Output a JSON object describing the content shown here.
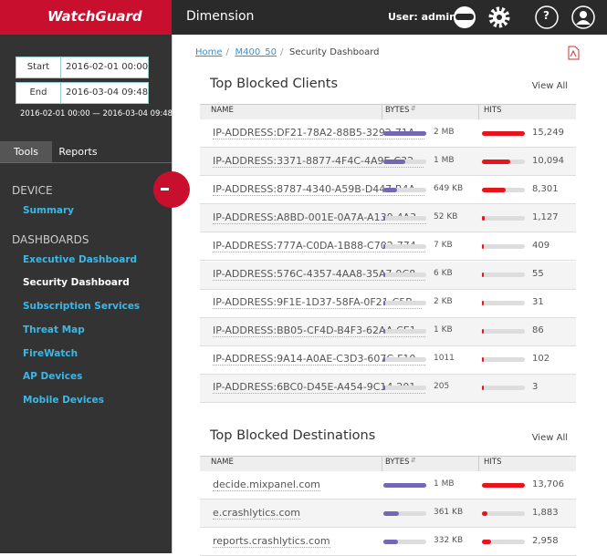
{
  "header": {
    "brand": "WatchGuard",
    "app": "Dimension",
    "user": "User: admin",
    "help": "?"
  },
  "sidebar": {
    "range": {
      "start_label": "Start",
      "start": "2016-02-01 00:00",
      "end_label": "End",
      "end": "2016-03-04 09:48",
      "summary": "2016-02-01 00:00 — 2016-03-04 09:48"
    },
    "tabs": [
      "Tools",
      "Reports"
    ],
    "sections": [
      {
        "title": "DEVICE",
        "items": [
          "Summary"
        ]
      },
      {
        "title": "DASHBOARDS",
        "items": [
          "Executive Dashboard",
          "Security Dashboard",
          "Subscription Services",
          "Threat Map",
          "FireWatch",
          "AP Devices",
          "Mobile Devices"
        ]
      }
    ]
  },
  "breadcrumb": [
    "Home",
    "M400_50",
    "Security Dashboard"
  ],
  "tables": [
    {
      "title": "Top Blocked Clients",
      "view_all": "View All",
      "columns": [
        "NAME",
        "BYTES",
        "HITS"
      ],
      "rows": [
        {
          "name": "IP-ADDRESS:DF21-78A2-88B5-3292-71A...",
          "bytes": {
            "value": 2000000,
            "label": "2 MB"
          },
          "hits": {
            "value": 15249,
            "label": "15,249"
          }
        },
        {
          "name": "IP-ADDRESS:3371-8877-4F4C-4A9E-C32...",
          "bytes": {
            "value": 1000000,
            "label": "1 MB"
          },
          "hits": {
            "value": 10094,
            "label": "10,094"
          }
        },
        {
          "name": "IP-ADDRESS:8787-4340-A59B-D447-B4A...",
          "bytes": {
            "value": 649000,
            "label": "649 KB"
          },
          "hits": {
            "value": 8301,
            "label": "8,301"
          }
        },
        {
          "name": "IP-ADDRESS:A8BD-001E-0A7A-A130-4A3...",
          "bytes": {
            "value": 52000,
            "label": "52 KB"
          },
          "hits": {
            "value": 1127,
            "label": "1,127"
          }
        },
        {
          "name": "IP-ADDRESS:777A-C0DA-1B88-C702-774...",
          "bytes": {
            "value": 7000,
            "label": "7 KB"
          },
          "hits": {
            "value": 409,
            "label": "409"
          }
        },
        {
          "name": "IP-ADDRESS:576C-4357-4AA8-35A7-9C8...",
          "bytes": {
            "value": 6000,
            "label": "6 KB"
          },
          "hits": {
            "value": 55,
            "label": "55"
          }
        },
        {
          "name": "IP-ADDRESS:9F1E-1D37-58FA-0F21-C5B...",
          "bytes": {
            "value": 2000,
            "label": "2 KB"
          },
          "hits": {
            "value": 31,
            "label": "31"
          }
        },
        {
          "name": "IP-ADDRESS:BB05-CF4D-B4F3-62AA-CE1...",
          "bytes": {
            "value": 1000,
            "label": "1 KB"
          },
          "hits": {
            "value": 86,
            "label": "86"
          }
        },
        {
          "name": "IP-ADDRESS:9A14-A0AE-C3D3-607C-F10...",
          "bytes": {
            "value": 1011,
            "label": "1011"
          },
          "hits": {
            "value": 102,
            "label": "102"
          }
        },
        {
          "name": "IP-ADDRESS:6BC0-D45E-A454-9C14-201...",
          "bytes": {
            "value": 205,
            "label": "205"
          },
          "hits": {
            "value": 3,
            "label": "3"
          }
        }
      ]
    },
    {
      "title": "Top Blocked Destinations",
      "view_all": "View All",
      "columns": [
        "NAME",
        "BYTES",
        "HITS"
      ],
      "rows": [
        {
          "name": "decide.mixpanel.com",
          "bytes": {
            "value": 1000000,
            "label": "1 MB"
          },
          "hits": {
            "value": 13706,
            "label": "13,706"
          }
        },
        {
          "name": "e.crashlytics.com",
          "bytes": {
            "value": 361000,
            "label": "361 KB"
          },
          "hits": {
            "value": 1883,
            "label": "1,883"
          }
        },
        {
          "name": "reports.crashlytics.com",
          "bytes": {
            "value": 332000,
            "label": "332 KB"
          },
          "hits": {
            "value": 2958,
            "label": "2,958"
          }
        }
      ]
    }
  ]
}
